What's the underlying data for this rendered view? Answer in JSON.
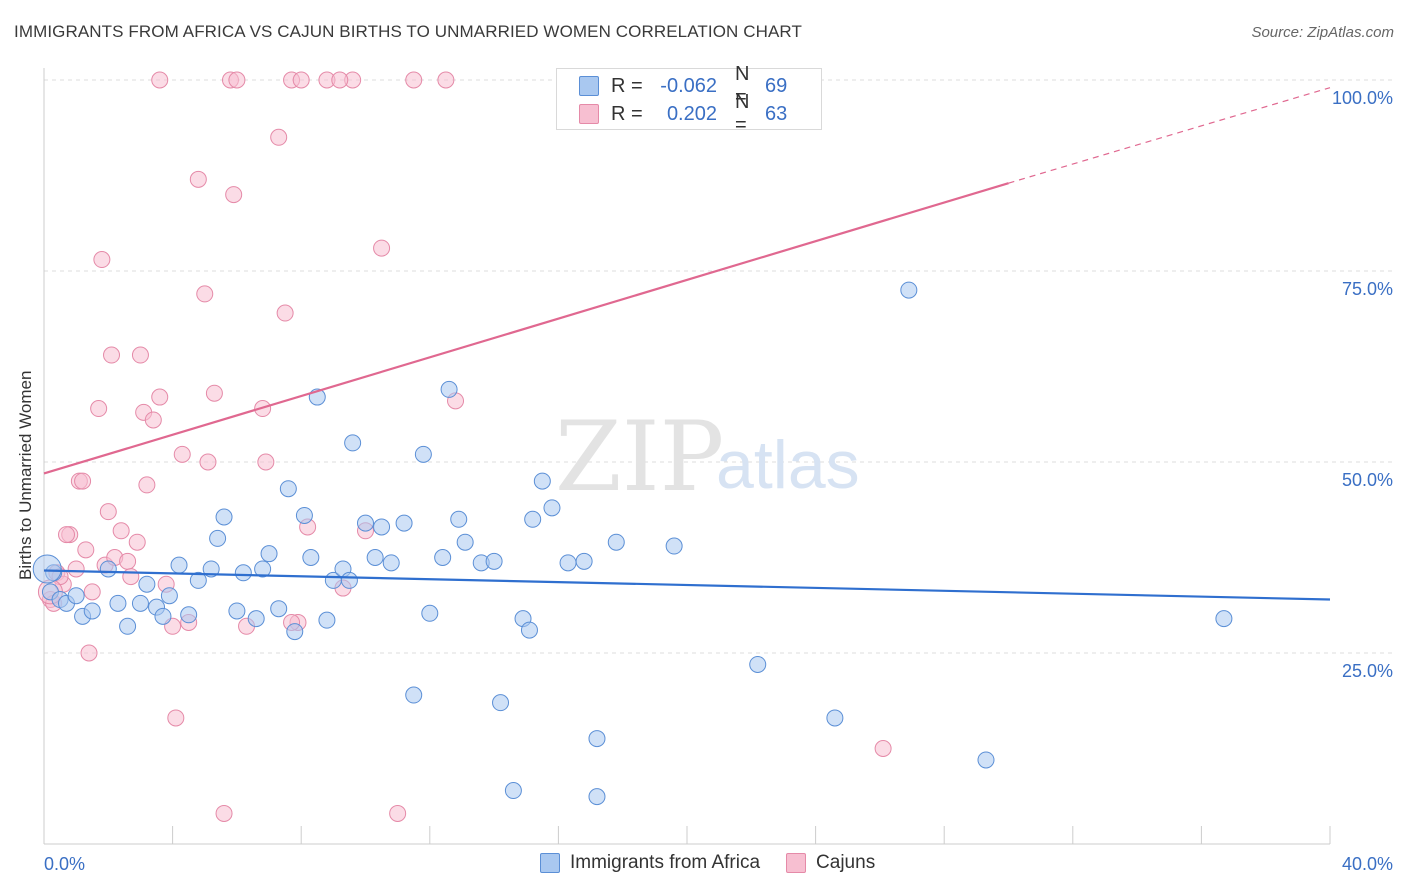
{
  "header": {
    "title": "IMMIGRANTS FROM AFRICA VS CAJUN BIRTHS TO UNMARRIED WOMEN CORRELATION CHART",
    "source": "Source: ZipAtlas.com"
  },
  "watermark": {
    "part1": "ZIP",
    "part2": "atlas"
  },
  "legend_top": {
    "rows": [
      {
        "r_label": "R =",
        "r_value": "-0.062",
        "n_label": "N =",
        "n_value": "69"
      },
      {
        "r_label": "R =",
        "r_value": "0.202",
        "n_label": "N =",
        "n_value": "63"
      }
    ]
  },
  "colors": {
    "africa_fill": "#a9c8f0",
    "africa_stroke": "#5b8fd6",
    "africa_line": "#2f6fcf",
    "cajun_fill": "#f7bfd1",
    "cajun_stroke": "#e58aa8",
    "cajun_line": "#e06890",
    "grid": "#dcdcdc",
    "tick_label": "#3a6fc4"
  },
  "chart_data": {
    "type": "scatter",
    "title": "IMMIGRANTS FROM AFRICA VS CAJUN BIRTHS TO UNMARRIED WOMEN CORRELATION CHART",
    "xlabel": "",
    "ylabel": "Births to Unmarried Women",
    "xlim": [
      0,
      40
    ],
    "ylim": [
      0,
      100
    ],
    "x_tick_labels": [
      "0.0%",
      "40.0%"
    ],
    "y_tick_labels": [
      "25.0%",
      "50.0%",
      "75.0%",
      "100.0%"
    ],
    "y_ticks": [
      25,
      50,
      75,
      100
    ],
    "grid": true,
    "legend_position": "bottom",
    "series": [
      {
        "name": "Immigrants from Africa",
        "points": [
          [
            0.2,
            33.0
          ],
          [
            0.5,
            32.0
          ],
          [
            0.7,
            31.5
          ],
          [
            1.2,
            29.8
          ],
          [
            1.5,
            30.5
          ],
          [
            2.0,
            36.0
          ],
          [
            2.3,
            31.5
          ],
          [
            2.6,
            28.5
          ],
          [
            3.0,
            31.5
          ],
          [
            3.2,
            34.0
          ],
          [
            3.5,
            31.0
          ],
          [
            3.7,
            29.8
          ],
          [
            3.9,
            32.5
          ],
          [
            4.2,
            36.5
          ],
          [
            4.5,
            30.0
          ],
          [
            4.8,
            34.5
          ],
          [
            5.2,
            36.0
          ],
          [
            5.4,
            40.0
          ],
          [
            5.6,
            42.8
          ],
          [
            6.0,
            30.5
          ],
          [
            6.2,
            35.5
          ],
          [
            6.6,
            29.5
          ],
          [
            6.8,
            36.0
          ],
          [
            7.0,
            38.0
          ],
          [
            7.3,
            30.8
          ],
          [
            7.6,
            46.5
          ],
          [
            7.8,
            27.8
          ],
          [
            8.1,
            43.0
          ],
          [
            8.3,
            37.5
          ],
          [
            8.5,
            58.5
          ],
          [
            8.8,
            29.3
          ],
          [
            9.0,
            34.5
          ],
          [
            9.3,
            36.0
          ],
          [
            9.5,
            34.5
          ],
          [
            9.6,
            52.5
          ],
          [
            10.0,
            42.0
          ],
          [
            10.3,
            37.5
          ],
          [
            10.5,
            41.5
          ],
          [
            10.8,
            36.8
          ],
          [
            11.2,
            42.0
          ],
          [
            11.5,
            19.5
          ],
          [
            11.8,
            51.0
          ],
          [
            12.0,
            30.2
          ],
          [
            12.4,
            37.5
          ],
          [
            12.6,
            59.5
          ],
          [
            12.9,
            42.5
          ],
          [
            13.1,
            39.5
          ],
          [
            13.6,
            36.8
          ],
          [
            14.0,
            37.0
          ],
          [
            14.6,
            7.0
          ],
          [
            14.9,
            29.5
          ],
          [
            15.1,
            28.0
          ],
          [
            15.2,
            42.5
          ],
          [
            15.5,
            47.5
          ],
          [
            15.8,
            44.0
          ],
          [
            16.3,
            36.8
          ],
          [
            16.8,
            37.0
          ],
          [
            17.2,
            13.8
          ],
          [
            17.8,
            39.5
          ],
          [
            19.6,
            39.0
          ],
          [
            17.2,
            6.2
          ],
          [
            22.2,
            23.5
          ],
          [
            24.6,
            16.5
          ],
          [
            26.9,
            72.5
          ],
          [
            29.3,
            11.0
          ],
          [
            36.7,
            29.5
          ],
          [
            14.2,
            18.5
          ],
          [
            0.3,
            35.5
          ],
          [
            1.0,
            32.5
          ]
        ]
      },
      {
        "name": "Cajuns",
        "points": [
          [
            0.2,
            32.0
          ],
          [
            0.4,
            35.5
          ],
          [
            0.6,
            34.0
          ],
          [
            0.8,
            40.5
          ],
          [
            1.0,
            36.0
          ],
          [
            1.1,
            47.5
          ],
          [
            1.3,
            38.5
          ],
          [
            1.4,
            25.0
          ],
          [
            1.5,
            33.0
          ],
          [
            1.7,
            57.0
          ],
          [
            1.8,
            76.5
          ],
          [
            1.9,
            36.5
          ],
          [
            2.0,
            43.5
          ],
          [
            2.1,
            64.0
          ],
          [
            2.2,
            37.5
          ],
          [
            2.4,
            41.0
          ],
          [
            2.6,
            37.0
          ],
          [
            2.7,
            35.0
          ],
          [
            2.9,
            39.5
          ],
          [
            3.0,
            64.0
          ],
          [
            3.1,
            56.5
          ],
          [
            3.2,
            47.0
          ],
          [
            3.4,
            55.5
          ],
          [
            3.6,
            58.5
          ],
          [
            3.8,
            34.0
          ],
          [
            4.0,
            28.5
          ],
          [
            4.1,
            16.5
          ],
          [
            4.3,
            51.0
          ],
          [
            4.5,
            29.0
          ],
          [
            4.8,
            87.0
          ],
          [
            5.0,
            72.0
          ],
          [
            5.1,
            50.0
          ],
          [
            5.3,
            59.0
          ],
          [
            5.6,
            4.0
          ],
          [
            5.9,
            85.0
          ],
          [
            6.3,
            28.5
          ],
          [
            6.8,
            57.0
          ],
          [
            6.9,
            50.0
          ],
          [
            7.3,
            92.5
          ],
          [
            7.5,
            69.5
          ],
          [
            7.9,
            29.0
          ],
          [
            8.2,
            41.5
          ],
          [
            9.3,
            33.5
          ],
          [
            10.0,
            41.0
          ],
          [
            10.5,
            78.0
          ],
          [
            11.0,
            4.0
          ],
          [
            12.8,
            58.0
          ],
          [
            1.2,
            47.5
          ],
          [
            0.7,
            40.5
          ],
          [
            3.6,
            100.0
          ],
          [
            5.8,
            100.0
          ],
          [
            6.0,
            100.0
          ],
          [
            7.7,
            100.0
          ],
          [
            8.8,
            100.0
          ],
          [
            8.0,
            100.0
          ],
          [
            9.6,
            100.0
          ],
          [
            11.5,
            100.0
          ],
          [
            12.5,
            100.0
          ],
          [
            9.2,
            100.0
          ],
          [
            26.1,
            12.5
          ],
          [
            7.7,
            29.0
          ],
          [
            0.5,
            35.0
          ],
          [
            0.3,
            31.5
          ]
        ]
      }
    ],
    "trend_lines": [
      {
        "series": "Immigrants from Africa",
        "x": [
          0,
          40
        ],
        "y": [
          35.8,
          32.0
        ]
      },
      {
        "series": "Cajuns",
        "x": [
          0,
          30.0,
          40
        ],
        "y": [
          48.5,
          86.5,
          99.0
        ]
      }
    ]
  },
  "axis_labels": {
    "y": "Births to Unmarried Women"
  },
  "legend_bottom": {
    "africa_label": "Immigrants from Africa",
    "cajun_label": "Cajuns"
  }
}
